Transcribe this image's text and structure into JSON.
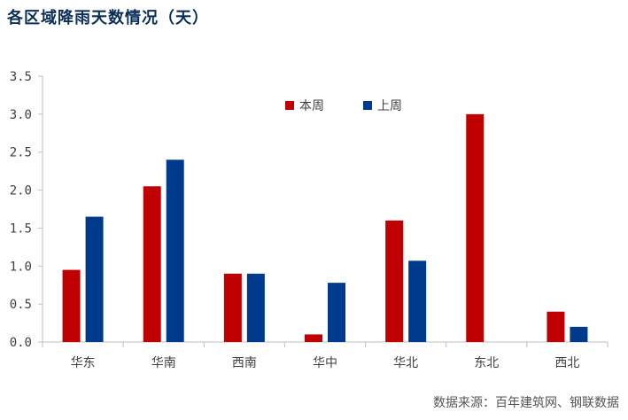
{
  "header": {
    "title": "各区域降雨天数情况（天）"
  },
  "footer": {
    "source": "数据来源：百年建筑网、钢联数据"
  },
  "colors": {
    "this_week": "#c00000",
    "last_week": "#003a8c",
    "axis": "#bfbfbf",
    "title": "#0b2e59"
  },
  "chart_data": {
    "type": "bar",
    "title": "各区域降雨天数情况（天）",
    "xlabel": "",
    "ylabel": "",
    "categories": [
      "华东",
      "华南",
      "西南",
      "华中",
      "华北",
      "东北",
      "西北"
    ],
    "series": [
      {
        "name": "本周",
        "values": [
          0.95,
          2.05,
          0.9,
          0.1,
          1.6,
          3.0,
          0.4
        ]
      },
      {
        "name": "上周",
        "values": [
          1.65,
          2.4,
          0.9,
          0.78,
          1.07,
          0,
          0.2
        ]
      }
    ],
    "ylim": [
      0,
      3.5
    ],
    "yticks": [
      "0.0",
      "0.5",
      "1.0",
      "1.5",
      "2.0",
      "2.5",
      "3.0",
      "3.5"
    ],
    "grid": false,
    "legend_position": "top-center"
  }
}
